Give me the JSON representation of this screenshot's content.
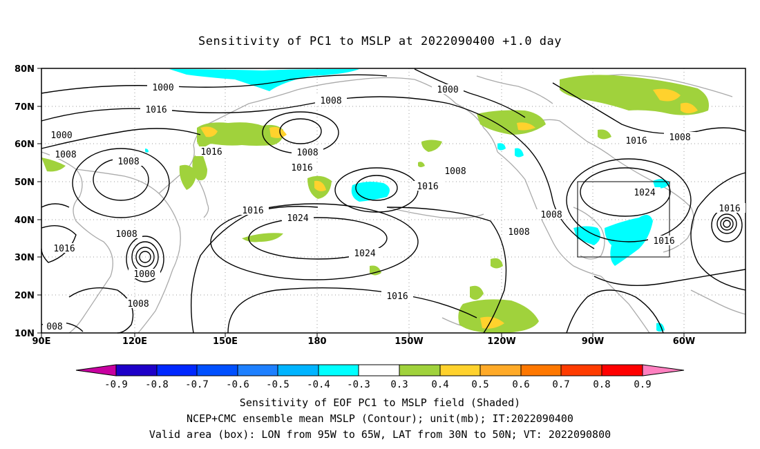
{
  "title": "Sensitivity of PC1 to MSLP at 2022090400 +1.0 day",
  "lat_labels": [
    "80N",
    "70N",
    "60N",
    "50N",
    "40N",
    "30N",
    "20N",
    "10N"
  ],
  "lon_labels": [
    "90E",
    "120E",
    "150E",
    "180",
    "150W",
    "120W",
    "90W",
    "60W"
  ],
  "contour_labels": [
    {
      "text": "1000",
      "name": "contour-label"
    },
    {
      "text": "1008",
      "name": "contour-label"
    },
    {
      "text": "1016",
      "name": "contour-label"
    },
    {
      "text": "1024",
      "name": "contour-label"
    }
  ],
  "labels": {
    "c1": "1000",
    "c2": "1008",
    "c3": "1000",
    "c4": "1016",
    "c5": "1000",
    "c6": "1008",
    "c7": "1016",
    "c8": "1008",
    "c9": "1016",
    "c10": "1008",
    "c11": "1016",
    "c12": "1008",
    "c13": "1016",
    "c14": "1024",
    "c15": "1008",
    "c16": "1016",
    "c17": "1000",
    "c18": "1008",
    "c19": "1024",
    "c20": "1016",
    "c21": "1008",
    "c22": "1008",
    "c23": "1016",
    "c24": "1024",
    "c25": "1016",
    "c26": "1016",
    "c27": "008"
  },
  "colorbar": {
    "labels": [
      "-0.9",
      "-0.8",
      "-0.7",
      "-0.6",
      "-0.5",
      "-0.4",
      "-0.3",
      "0.3",
      "0.4",
      "0.5",
      "0.6",
      "0.7",
      "0.8",
      "0.9"
    ],
    "colors": [
      "#a000c8",
      "#1e3cff",
      "#0050ff",
      "#1e78ff",
      "#0096ff",
      "#00c8ff",
      "#00ffff",
      "#ffffff",
      "#a0d23c",
      "#ffd22d",
      "#ffaa28",
      "#ff7800",
      "#ff3c00",
      "#ff0000",
      "#ff80c0"
    ]
  },
  "footer": {
    "line1": "Sensitivity of EOF PC1 to MSLP field (Shaded)",
    "line2": "NCEP+CMC ensemble mean MSLP (Contour); unit(mb); IT:2022090400",
    "line3": "Valid area (box): LON from 95W to 65W, LAT from 30N to 50N; VT: 2022090800"
  }
}
